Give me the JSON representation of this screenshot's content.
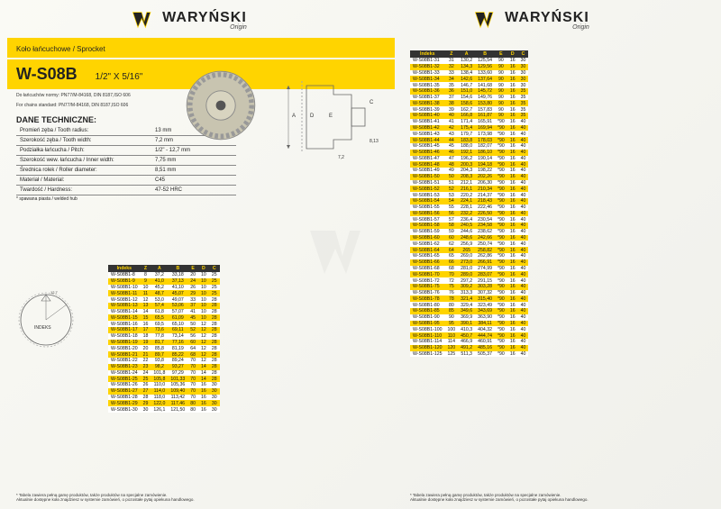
{
  "brand": "WARYŃSKI",
  "brand_sub": "Origin",
  "section_header": "Koło łańcuchowe / Sprocket",
  "model_code": "W-S08B",
  "model_spec": "1/2\" X 5/16\"",
  "chain_note1": "Do łańcuchów normy: PN77/M-84168, DIN 8187,ISO 606",
  "chain_note2": "For chains standard: PN77/M-84168, DIN 8187,ISO 606",
  "tech_title": "DANE TECHNICZNE:",
  "specs": [
    {
      "label": "Promień zęba / Tooth radius:",
      "value": "13 mm"
    },
    {
      "label": "Szerokość zęba / Tooth width:",
      "value": "7,2 mm"
    },
    {
      "label": "Podziałka łańcucha / Pitch:",
      "value": "1/2\" - 12,7 mm"
    },
    {
      "label": "Szerokość wew. łańcucha / Inner width:",
      "value": "7,75 mm"
    },
    {
      "label": "Średnica rolek / Roller diameter:",
      "value": "8,51 mm"
    },
    {
      "label": "Materiał / Material:",
      "value": "C45"
    },
    {
      "label": "Twardość / Hardness:",
      "value": "47-52 HRC"
    }
  ],
  "welded_note": "* spawana piasta / welded hub",
  "headers": [
    "Indeks",
    "Z",
    "A",
    "B",
    "E",
    "D",
    "C"
  ],
  "table1": [
    [
      "W-S08B1-8",
      "8",
      "37,2",
      "33,18",
      "20",
      "10",
      "25"
    ],
    [
      "W-S08B1-9",
      "9",
      "41,0",
      "37,13",
      "24",
      "10",
      "25"
    ],
    [
      "W-S08B1-10",
      "10",
      "45,2",
      "41,10",
      "26",
      "10",
      "25"
    ],
    [
      "W-S08B1-11",
      "11",
      "48,7",
      "45,07",
      "29",
      "10",
      "25"
    ],
    [
      "W-S08B1-12",
      "12",
      "53,0",
      "49,07",
      "33",
      "10",
      "28"
    ],
    [
      "W-S08B1-13",
      "13",
      "57,4",
      "53,06",
      "37",
      "10",
      "28"
    ],
    [
      "W-S08B1-14",
      "14",
      "61,8",
      "57,07",
      "41",
      "10",
      "28"
    ],
    [
      "W-S08B1-15",
      "15",
      "65,5",
      "61,09",
      "45",
      "10",
      "28"
    ],
    [
      "W-S08B1-16",
      "16",
      "69,5",
      "65,10",
      "50",
      "12",
      "28"
    ],
    [
      "W-S08B1-17",
      "17",
      "73,6",
      "69,11",
      "52",
      "12",
      "28"
    ],
    [
      "W-S08B1-18",
      "18",
      "77,8",
      "73,14",
      "56",
      "12",
      "28"
    ],
    [
      "W-S08B1-19",
      "19",
      "81,7",
      "77,16",
      "60",
      "12",
      "28"
    ],
    [
      "W-S08B1-20",
      "20",
      "85,8",
      "81,19",
      "64",
      "12",
      "28"
    ],
    [
      "W-S08B1-21",
      "21",
      "89,7",
      "85,22",
      "68",
      "12",
      "28"
    ],
    [
      "W-S08B1-22",
      "22",
      "93,8",
      "89,24",
      "70",
      "12",
      "28"
    ],
    [
      "W-S08B1-23",
      "23",
      "98,2",
      "93,27",
      "70",
      "14",
      "28"
    ],
    [
      "W-S08B1-24",
      "24",
      "101,8",
      "97,29",
      "70",
      "14",
      "28"
    ],
    [
      "W-S08B1-25",
      "25",
      "105,8",
      "101,33",
      "70",
      "14",
      "28"
    ],
    [
      "W-S08B1-26",
      "26",
      "110,0",
      "105,36",
      "70",
      "16",
      "30"
    ],
    [
      "W-S08B1-27",
      "27",
      "114,0",
      "109,40",
      "70",
      "16",
      "30"
    ],
    [
      "W-S08B1-28",
      "28",
      "118,0",
      "113,42",
      "70",
      "16",
      "30"
    ],
    [
      "W-S08B1-29",
      "29",
      "122,0",
      "117,46",
      "80",
      "16",
      "30"
    ],
    [
      "W-S08B1-30",
      "30",
      "126,1",
      "121,50",
      "80",
      "16",
      "30"
    ]
  ],
  "table2": [
    [
      "W-S08B1-31",
      "31",
      "130,2",
      "125,54",
      "90",
      "16",
      "30"
    ],
    [
      "W-S08B1-32",
      "32",
      "134,3",
      "129,56",
      "90",
      "16",
      "30"
    ],
    [
      "W-S08B1-33",
      "33",
      "138,4",
      "133,60",
      "90",
      "16",
      "30"
    ],
    [
      "W-S08B1-34",
      "34",
      "142,6",
      "137,64",
      "90",
      "16",
      "30"
    ],
    [
      "W-S08B1-35",
      "35",
      "146,7",
      "141,68",
      "90",
      "16",
      "30"
    ],
    [
      "W-S08B1-36",
      "36",
      "151,0",
      "145,72",
      "90",
      "16",
      "35"
    ],
    [
      "W-S08B1-37",
      "37",
      "154,6",
      "149,76",
      "90",
      "16",
      "35"
    ],
    [
      "W-S08B1-38",
      "38",
      "158,6",
      "153,80",
      "90",
      "16",
      "35"
    ],
    [
      "W-S08B1-39",
      "39",
      "162,7",
      "157,83",
      "90",
      "16",
      "35"
    ],
    [
      "W-S08B1-40",
      "40",
      "166,8",
      "161,87",
      "90",
      "16",
      "35"
    ],
    [
      "W-S08B1-41",
      "41",
      "171,4",
      "165,91",
      "*90",
      "16",
      "40"
    ],
    [
      "W-S08B1-42",
      "42",
      "175,4",
      "169,94",
      "*90",
      "16",
      "40"
    ],
    [
      "W-S08B1-43",
      "43",
      "179,7",
      "173,98",
      "*90",
      "16",
      "40"
    ],
    [
      "W-S08B1-44",
      "44",
      "183,8",
      "178,03",
      "*90",
      "16",
      "40"
    ],
    [
      "W-S08B1-45",
      "45",
      "188,0",
      "182,07",
      "*90",
      "16",
      "40"
    ],
    [
      "W-S08B1-46",
      "46",
      "192,1",
      "186,10",
      "*90",
      "16",
      "40"
    ],
    [
      "W-S08B1-47",
      "47",
      "196,2",
      "190,14",
      "*90",
      "16",
      "40"
    ],
    [
      "W-S08B1-48",
      "48",
      "200,3",
      "194,18",
      "*90",
      "16",
      "40"
    ],
    [
      "W-S08B1-49",
      "49",
      "204,3",
      "198,22",
      "*90",
      "16",
      "40"
    ],
    [
      "W-S08B1-50",
      "50",
      "208,3",
      "202,26",
      "*90",
      "16",
      "40"
    ],
    [
      "W-S08B1-51",
      "51",
      "212,1",
      "206,30",
      "*90",
      "16",
      "40"
    ],
    [
      "W-S08B1-52",
      "52",
      "216,1",
      "210,34",
      "*90",
      "16",
      "40"
    ],
    [
      "W-S08B1-53",
      "53",
      "220,2",
      "214,37",
      "*90",
      "16",
      "40"
    ],
    [
      "W-S08B1-54",
      "54",
      "224,1",
      "218,43",
      "*90",
      "16",
      "40"
    ],
    [
      "W-S08B1-55",
      "55",
      "228,1",
      "222,46",
      "*90",
      "16",
      "40"
    ],
    [
      "W-S08B1-56",
      "56",
      "232,2",
      "226,50",
      "*90",
      "16",
      "40"
    ],
    [
      "W-S08B1-57",
      "57",
      "236,4",
      "230,54",
      "*90",
      "16",
      "40"
    ],
    [
      "W-S08B1-58",
      "58",
      "240,5",
      "234,58",
      "*90",
      "16",
      "40"
    ],
    [
      "W-S08B1-59",
      "59",
      "244,6",
      "238,62",
      "*90",
      "16",
      "40"
    ],
    [
      "W-S08B1-60",
      "60",
      "248,6",
      "242,66",
      "*90",
      "16",
      "40"
    ],
    [
      "W-S08B1-62",
      "62",
      "256,9",
      "250,74",
      "*90",
      "16",
      "40"
    ],
    [
      "W-S08B1-64",
      "64",
      "265",
      "258,82",
      "*90",
      "16",
      "40"
    ],
    [
      "W-S08B1-65",
      "65",
      "269,0",
      "262,86",
      "*90",
      "16",
      "40"
    ],
    [
      "W-S08B1-66",
      "66",
      "273,0",
      "266,91",
      "*90",
      "16",
      "40"
    ],
    [
      "W-S08B1-68",
      "68",
      "281,0",
      "274,99",
      "*90",
      "16",
      "40"
    ],
    [
      "W-S08B1-70",
      "70",
      "289,0",
      "283,07",
      "*90",
      "16",
      "40"
    ],
    [
      "W-S08B1-72",
      "72",
      "297,2",
      "291,15",
      "*90",
      "16",
      "40"
    ],
    [
      "W-S08B1-75",
      "75",
      "309,2",
      "303,28",
      "*90",
      "16",
      "40"
    ],
    [
      "W-S08B1-76",
      "76",
      "313,3",
      "307,32",
      "*90",
      "16",
      "40"
    ],
    [
      "W-S08B1-78",
      "78",
      "321,4",
      "315,40",
      "*90",
      "16",
      "40"
    ],
    [
      "W-S08B1-80",
      "80",
      "329,4",
      "323,49",
      "*90",
      "16",
      "40"
    ],
    [
      "W-S08B1-85",
      "85",
      "349,6",
      "343,69",
      "*90",
      "16",
      "40"
    ],
    [
      "W-S08B1-90",
      "90",
      "369,9",
      "363,90",
      "*90",
      "16",
      "40"
    ],
    [
      "W-S08B1-95",
      "95",
      "390,1",
      "384,11",
      "*90",
      "16",
      "40"
    ],
    [
      "W-S08B1-100",
      "100",
      "410,3",
      "404,32",
      "*90",
      "16",
      "40"
    ],
    [
      "W-S08B1-110",
      "110",
      "450,7",
      "444,74",
      "*90",
      "16",
      "40"
    ],
    [
      "W-S08B1-114",
      "114",
      "466,9",
      "460,91",
      "*90",
      "16",
      "40"
    ],
    [
      "W-S08B1-120",
      "120",
      "491,2",
      "485,16",
      "*90",
      "16",
      "40"
    ],
    [
      "W-S08B1-125",
      "125",
      "511,3",
      "505,37",
      "*90",
      "16",
      "40"
    ]
  ],
  "footer1": "* Tabela zawiera pełną gamę produktów, także produktów na specjalne zamówienie.",
  "footer2": "Aktualnie dostępne koła znajdziesz w systemie zamówień, o pozostałe pytaj opiekuna handlowego.",
  "colors": {
    "yellow": "#ffd400",
    "dark": "#222",
    "bg": "#f5f5f0"
  },
  "diagram_labels": {
    "A": "A",
    "B": "B",
    "D": "D",
    "E": "E",
    "C": "C",
    "pin": "8,13",
    "btm": "7,2"
  }
}
